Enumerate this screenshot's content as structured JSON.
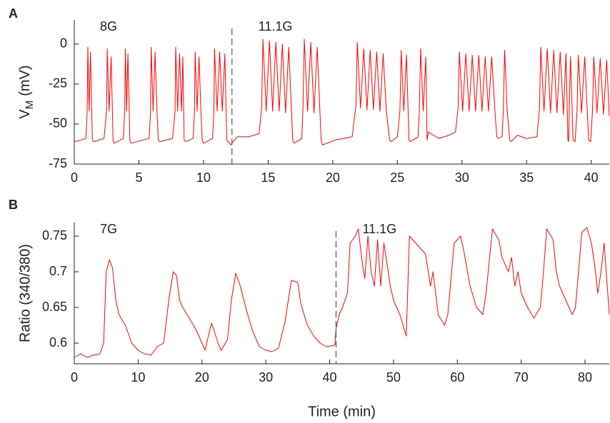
{
  "chart_data": [
    {
      "type": "line",
      "panel": "A",
      "ylabel": {
        "main": "V",
        "sub": "M",
        "unit": "(mV)"
      },
      "annotations": [
        "8G",
        "11.1G"
      ],
      "switch_x": 12.2,
      "color": "#ff0000",
      "xlim": [
        0,
        41.4
      ],
      "xticks": [
        0,
        5,
        10,
        15,
        20,
        25,
        30,
        35,
        40
      ],
      "ylim": [
        -75,
        15
      ],
      "yticks": [
        -75,
        -50,
        -25,
        0
      ],
      "x": [
        0,
        0.5,
        0.9,
        1.0,
        1.05,
        1.15,
        1.25,
        1.35,
        1.4,
        1.5,
        2.3,
        2.5,
        2.55,
        2.7,
        2.85,
        3.0,
        3.1,
        3.8,
        3.9,
        3.95,
        4.05,
        4.15,
        4.25,
        4.3,
        4.4,
        5.3,
        5.8,
        5.9,
        5.95,
        6.1,
        6.25,
        6.4,
        6.5,
        6.6,
        7.6,
        7.8,
        7.85,
        8.0,
        8.15,
        8.3,
        8.4,
        8.5,
        8.6,
        9.2,
        9.3,
        9.35,
        9.5,
        9.65,
        9.8,
        9.9,
        10.0,
        10.7,
        10.8,
        10.85,
        11.05,
        11.25,
        11.45,
        11.65,
        11.8,
        11.9,
        12.1,
        12.6,
        13.5,
        14.3,
        14.5,
        14.6,
        14.85,
        15.1,
        15.35,
        15.6,
        15.85,
        16.1,
        16.35,
        16.6,
        16.9,
        17.0,
        17.6,
        17.7,
        17.8,
        18.05,
        18.3,
        18.55,
        18.8,
        19.1,
        19.2,
        20.2,
        21.5,
        21.8,
        21.9,
        22.15,
        22.4,
        22.65,
        22.9,
        23.15,
        23.4,
        23.65,
        23.9,
        24.15,
        24.4,
        24.5,
        25.0,
        25.2,
        25.3,
        25.5,
        25.7,
        25.9,
        26.0,
        26.6,
        26.7,
        26.8,
        27.0,
        27.2,
        27.3,
        27.4,
        28.2,
        29.0,
        29.5,
        29.7,
        29.8,
        30.05,
        30.3,
        30.55,
        30.8,
        31.05,
        31.3,
        31.55,
        31.8,
        32.05,
        32.3,
        32.55,
        32.7,
        32.8,
        33.1,
        33.2,
        33.3,
        33.5,
        33.7,
        33.8,
        34.3,
        35.0,
        35.8,
        36.0,
        36.1,
        36.35,
        36.6,
        36.85,
        37.1,
        37.35,
        37.6,
        37.85,
        38.05,
        38.2,
        38.25,
        38.3,
        38.4,
        38.6,
        38.75,
        38.9,
        39.0,
        39.25,
        39.5,
        39.8,
        39.95,
        40.1,
        40.2,
        40.45,
        40.7,
        40.95,
        41.2,
        41.4
      ],
      "values": [
        -61,
        -60,
        -59,
        -42,
        -2,
        -42,
        -5,
        -42,
        -60,
        -61,
        -59,
        -42,
        -3,
        -42,
        -8,
        -60,
        -62,
        -59,
        -42,
        -3,
        -42,
        -6,
        -42,
        -60,
        -62,
        -60,
        -59,
        -42,
        -2,
        -42,
        -5,
        -42,
        -60,
        -61,
        -59,
        -42,
        -2,
        -42,
        -6,
        -42,
        -8,
        -60,
        -61,
        -59,
        -42,
        -5,
        -42,
        -8,
        -42,
        -60,
        -62,
        -59,
        -42,
        -3,
        -42,
        -5,
        -42,
        -6,
        -60,
        -61,
        -63,
        -58,
        -58,
        -56,
        -40,
        3,
        -42,
        2,
        -42,
        1,
        -42,
        0,
        -43,
        -2,
        -60,
        -62,
        -59,
        -40,
        3,
        -42,
        1,
        -43,
        -2,
        -60,
        -63,
        -60,
        -58,
        -38,
        1,
        -40,
        -3,
        -41,
        -4,
        -41,
        -5,
        -42,
        -6,
        -42,
        -60,
        -61,
        -58,
        -42,
        -4,
        -42,
        -7,
        -60,
        -61,
        -58,
        -42,
        -3,
        -42,
        -8,
        -60,
        -55,
        -59,
        -57,
        -55,
        -40,
        -5,
        -42,
        -6,
        -42,
        -7,
        -42,
        -7,
        -42,
        -8,
        -42,
        -8,
        -42,
        -58,
        -59,
        -58,
        -42,
        -4,
        -42,
        -60,
        -61,
        -57,
        -59,
        -58,
        -40,
        -2,
        -42,
        -3,
        -43,
        -4,
        -43,
        -5,
        -44,
        -6,
        -60,
        -61,
        -42,
        -8,
        -60,
        -61,
        -42,
        -7,
        -43,
        -8,
        -60,
        -61,
        -42,
        -8,
        -43,
        -9,
        -44,
        -10,
        -45
      ]
    },
    {
      "type": "line",
      "panel": "B",
      "ylabel": "Ratio (340/380)",
      "xlabel": "Time (min)",
      "annotations": [
        "7G",
        "11.1G"
      ],
      "switch_x": 41.0,
      "color": "#ff0000",
      "xlim": [
        0,
        83.8
      ],
      "xticks": [
        0,
        10,
        20,
        30,
        40,
        50,
        60,
        70,
        80
      ],
      "ylim": [
        0.571,
        0.769
      ],
      "yticks": [
        0.6,
        0.65,
        0.7,
        0.75
      ],
      "x": [
        0,
        1,
        2,
        3,
        4,
        4.6,
        5,
        5.5,
        6,
        6.5,
        7,
        8,
        9,
        10,
        11,
        12,
        13,
        14,
        14.8,
        15.5,
        16,
        16.5,
        17,
        18,
        19,
        20,
        20.5,
        21,
        21.5,
        22,
        22.5,
        23,
        24,
        24.6,
        25.3,
        26,
        27,
        28,
        29,
        30,
        31,
        32,
        33,
        34,
        35,
        35.5,
        36.5,
        37.5,
        38.5,
        39.5,
        40.8,
        41,
        41.5,
        42,
        42.8,
        43.2,
        44,
        44.5,
        45,
        45.5,
        46,
        46.5,
        47,
        47.5,
        48,
        48.5,
        49,
        49.5,
        50,
        51,
        52,
        52.5,
        53.5,
        55,
        55.8,
        56.2,
        57,
        58,
        58.5,
        59.5,
        60.5,
        61,
        62,
        63,
        64,
        64.5,
        65.5,
        66.5,
        67,
        68,
        68.5,
        69,
        69.5,
        70,
        71,
        72,
        73,
        73.5,
        74,
        75,
        75.5,
        76,
        77,
        78,
        78.5,
        79.5,
        80.3,
        81,
        81.5,
        82,
        82.5,
        83,
        83.8
      ],
      "values": [
        0.58,
        0.585,
        0.58,
        0.583,
        0.585,
        0.6,
        0.7,
        0.717,
        0.705,
        0.66,
        0.64,
        0.625,
        0.6,
        0.59,
        0.585,
        0.583,
        0.595,
        0.6,
        0.66,
        0.7,
        0.695,
        0.66,
        0.65,
        0.635,
        0.62,
        0.6,
        0.59,
        0.61,
        0.628,
        0.615,
        0.6,
        0.59,
        0.605,
        0.66,
        0.698,
        0.68,
        0.645,
        0.615,
        0.595,
        0.59,
        0.588,
        0.593,
        0.63,
        0.688,
        0.685,
        0.655,
        0.625,
        0.61,
        0.6,
        0.595,
        0.597,
        0.62,
        0.64,
        0.65,
        0.67,
        0.74,
        0.75,
        0.76,
        0.72,
        0.69,
        0.75,
        0.7,
        0.68,
        0.745,
        0.68,
        0.74,
        0.71,
        0.68,
        0.66,
        0.64,
        0.61,
        0.75,
        0.74,
        0.725,
        0.68,
        0.7,
        0.64,
        0.625,
        0.64,
        0.74,
        0.75,
        0.73,
        0.68,
        0.65,
        0.64,
        0.67,
        0.76,
        0.745,
        0.72,
        0.7,
        0.72,
        0.68,
        0.7,
        0.67,
        0.65,
        0.635,
        0.65,
        0.7,
        0.76,
        0.745,
        0.7,
        0.68,
        0.66,
        0.64,
        0.65,
        0.755,
        0.762,
        0.74,
        0.71,
        0.67,
        0.7,
        0.74,
        0.64
      ]
    }
  ]
}
